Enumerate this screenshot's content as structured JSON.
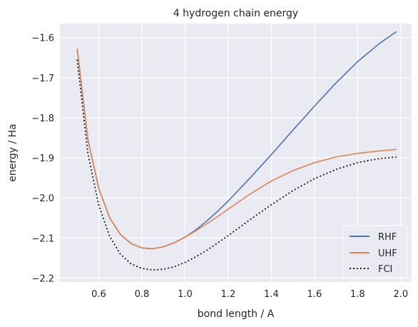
{
  "chart_data": {
    "type": "line",
    "title": "4 hydrogen chain energy",
    "xlabel": "bond length / A",
    "ylabel": "energy / Ha",
    "xlim": [
      0.42,
      2.05
    ],
    "ylim": [
      -2.21,
      -1.565
    ],
    "xticks": [
      0.6,
      0.8,
      1.0,
      1.2,
      1.4,
      1.6,
      1.8,
      2.0
    ],
    "xtick_labels": [
      "0.6",
      "0.8",
      "1.0",
      "1.2",
      "1.4",
      "1.6",
      "1.8",
      "2.0"
    ],
    "yticks": [
      -2.2,
      -2.1,
      -2.0,
      -1.9,
      -1.8,
      -1.7,
      -1.6
    ],
    "ytick_labels": [
      "−2.2",
      "−2.1",
      "−2.0",
      "−1.9",
      "−1.8",
      "−1.7",
      "−1.6"
    ],
    "grid": true,
    "legend_position": "lower-right",
    "series": [
      {
        "name": "RHF",
        "color": "#4c72b0",
        "style": "solid",
        "x": [
          0.5,
          0.55,
          0.6,
          0.65,
          0.7,
          0.75,
          0.8,
          0.85,
          0.9,
          0.95,
          1.0,
          1.05,
          1.1,
          1.15,
          1.2,
          1.3,
          1.4,
          1.5,
          1.6,
          1.7,
          1.8,
          1.9,
          1.98
        ],
        "y": [
          -1.628,
          -1.855,
          -1.976,
          -2.049,
          -2.091,
          -2.114,
          -2.125,
          -2.127,
          -2.122,
          -2.112,
          -2.098,
          -2.08,
          -2.058,
          -2.034,
          -2.008,
          -1.951,
          -1.892,
          -1.831,
          -1.771,
          -1.713,
          -1.66,
          -1.615,
          -1.585
        ]
      },
      {
        "name": "UHF",
        "color": "#dd8452",
        "style": "solid",
        "x": [
          0.5,
          0.55,
          0.6,
          0.65,
          0.7,
          0.75,
          0.8,
          0.85,
          0.9,
          0.95,
          1.0,
          1.05,
          1.1,
          1.15,
          1.2,
          1.3,
          1.4,
          1.5,
          1.6,
          1.7,
          1.8,
          1.9,
          1.98
        ],
        "y": [
          -1.628,
          -1.855,
          -1.976,
          -2.049,
          -2.091,
          -2.114,
          -2.125,
          -2.127,
          -2.122,
          -2.112,
          -2.098,
          -2.082,
          -2.065,
          -2.047,
          -2.028,
          -1.991,
          -1.958,
          -1.932,
          -1.912,
          -1.898,
          -1.889,
          -1.883,
          -1.879
        ]
      },
      {
        "name": "FCI",
        "color": "#1a1a1a",
        "style": "dotted",
        "x": [
          0.5,
          0.55,
          0.6,
          0.65,
          0.7,
          0.75,
          0.8,
          0.85,
          0.9,
          0.95,
          1.0,
          1.05,
          1.1,
          1.15,
          1.2,
          1.3,
          1.4,
          1.5,
          1.6,
          1.7,
          1.8,
          1.9,
          1.98
        ],
        "y": [
          -1.655,
          -1.89,
          -2.018,
          -2.096,
          -2.14,
          -2.165,
          -2.176,
          -2.18,
          -2.178,
          -2.172,
          -2.161,
          -2.147,
          -2.131,
          -2.113,
          -2.094,
          -2.055,
          -2.017,
          -1.982,
          -1.952,
          -1.929,
          -1.912,
          -1.902,
          -1.898
        ]
      }
    ]
  }
}
